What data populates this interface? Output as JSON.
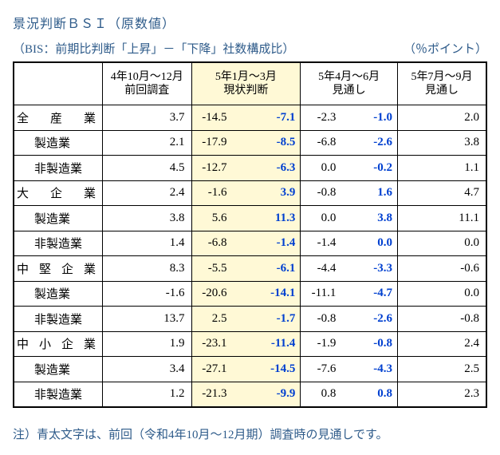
{
  "title": "景況判断ＢＳＩ（原数値）",
  "subtitle_left": "（BIS：前期比判断「上昇」－「下降」社数構成比）",
  "subtitle_right": "（％ポイント）",
  "footnote": "注）青太文字は、前回（令和4年10月～12月期）調査時の見通しです。",
  "columns": {
    "c1": {
      "l1": "4年10月～12月",
      "l2": "前回調査",
      "highlight": false,
      "pair": false
    },
    "c2": {
      "l1": "5年1月～3月",
      "l2": "現状判断",
      "highlight": true,
      "pair": true
    },
    "c3": {
      "l1": "5年4月～6月",
      "l2": "見通し",
      "highlight": false,
      "pair": true
    },
    "c4": {
      "l1": "5年7月～9月",
      "l2": "見通し",
      "highlight": false,
      "pair": false
    }
  },
  "rows": [
    {
      "label": "全 産 業",
      "indent": 0,
      "c1": "3.7",
      "c2": [
        "-14.5",
        "-7.1"
      ],
      "c3": [
        "-2.3",
        "-1.0"
      ],
      "c4": "2.0"
    },
    {
      "label": "製造業",
      "indent": 1,
      "c1": "2.1",
      "c2": [
        "-17.9",
        "-8.5"
      ],
      "c3": [
        "-6.8",
        "-2.6"
      ],
      "c4": "3.8"
    },
    {
      "label": "非製造業",
      "indent": 1,
      "c1": "4.5",
      "c2": [
        "-12.7",
        "-6.3"
      ],
      "c3": [
        "0.0",
        "-0.2"
      ],
      "c4": "1.1"
    },
    {
      "label": "大 企 業",
      "indent": 0,
      "c1": "2.4",
      "c2": [
        "-1.6",
        "3.9"
      ],
      "c3": [
        "-0.8",
        "1.6"
      ],
      "c4": "4.7"
    },
    {
      "label": "製造業",
      "indent": 1,
      "c1": "3.8",
      "c2": [
        "5.6",
        "11.3"
      ],
      "c3": [
        "0.0",
        "3.8"
      ],
      "c4": "11.1"
    },
    {
      "label": "非製造業",
      "indent": 1,
      "c1": "1.4",
      "c2": [
        "-6.8",
        "-1.4"
      ],
      "c3": [
        "-1.4",
        "0.0"
      ],
      "c4": "0.0"
    },
    {
      "label": "中 堅 企 業",
      "indent": 0,
      "c1": "8.3",
      "c2": [
        "-5.5",
        "-6.1"
      ],
      "c3": [
        "-4.4",
        "-3.3"
      ],
      "c4": "-0.6"
    },
    {
      "label": "製造業",
      "indent": 1,
      "c1": "-1.6",
      "c2": [
        "-20.6",
        "-14.1"
      ],
      "c3": [
        "-11.1",
        "-4.7"
      ],
      "c4": "0.0"
    },
    {
      "label": "非製造業",
      "indent": 1,
      "c1": "13.7",
      "c2": [
        "2.5",
        "-1.7"
      ],
      "c3": [
        "-0.8",
        "-2.6"
      ],
      "c4": "-0.8"
    },
    {
      "label": "中 小 企 業",
      "indent": 0,
      "c1": "1.9",
      "c2": [
        "-23.1",
        "-11.4"
      ],
      "c3": [
        "-1.9",
        "-0.8"
      ],
      "c4": "2.4"
    },
    {
      "label": "製造業",
      "indent": 1,
      "c1": "3.4",
      "c2": [
        "-27.1",
        "-14.5"
      ],
      "c3": [
        "-7.6",
        "-4.3"
      ],
      "c4": "2.5"
    },
    {
      "label": "非製造業",
      "indent": 1,
      "c1": "1.2",
      "c2": [
        "-21.3",
        "-9.9"
      ],
      "c3": [
        "0.8",
        "0.8"
      ],
      "c4": "2.3"
    }
  ],
  "col_widths": [
    "110px",
    "110px",
    "135px",
    "120px",
    "110px"
  ]
}
